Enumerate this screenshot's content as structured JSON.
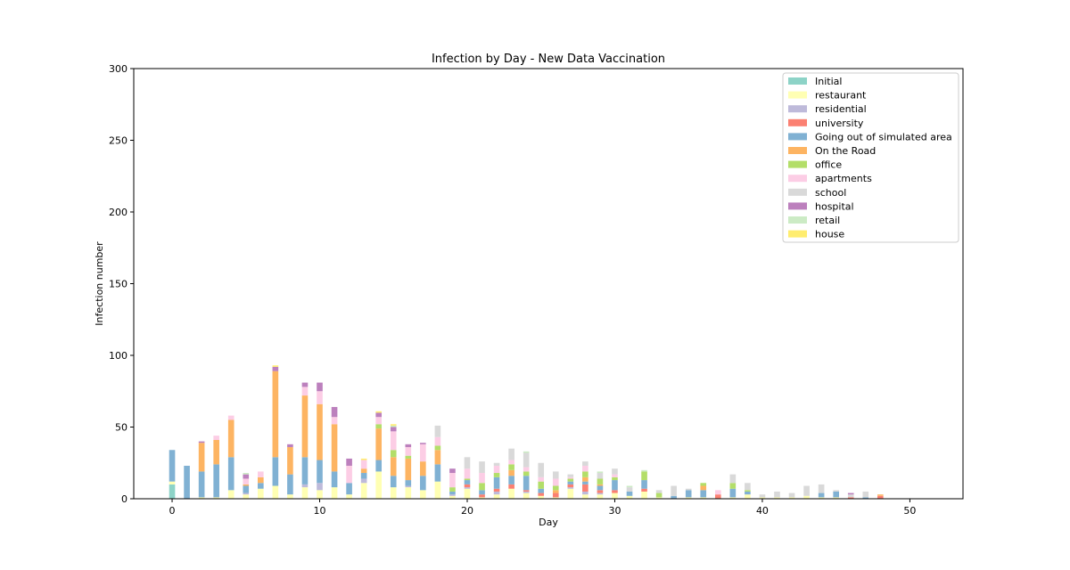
{
  "chart_data": {
    "type": "bar",
    "stacked": true,
    "title": "Infection by Day - New Data Vaccination",
    "xlabel": "Day",
    "ylabel": "Infection number",
    "xlim": [
      -2.6,
      53.6
    ],
    "ylim": [
      0,
      300
    ],
    "xticks": [
      0,
      10,
      20,
      30,
      40,
      50
    ],
    "yticks": [
      0,
      50,
      100,
      150,
      200,
      250,
      300
    ],
    "grid": false,
    "legend_position": "top-right",
    "x": [
      0,
      1,
      2,
      3,
      4,
      5,
      6,
      7,
      8,
      9,
      10,
      11,
      12,
      13,
      14,
      15,
      16,
      17,
      18,
      19,
      20,
      21,
      22,
      23,
      24,
      25,
      26,
      27,
      28,
      29,
      30,
      31,
      32,
      33,
      34,
      35,
      36,
      37,
      38,
      39,
      40,
      41,
      42,
      43,
      44,
      45,
      46,
      47,
      48,
      49,
      50,
      51,
      52
    ],
    "series": [
      {
        "name": "Initial",
        "color": "#8dd3c7",
        "values": [
          10,
          0,
          0,
          0,
          0,
          0,
          0,
          0,
          0,
          0,
          0,
          0,
          0,
          0,
          0,
          0,
          0,
          0,
          0,
          0,
          0,
          0,
          0,
          0,
          0,
          0,
          0,
          0,
          0,
          0,
          0,
          0,
          0,
          0,
          0,
          0,
          0,
          0,
          0,
          0,
          0,
          0,
          0,
          0,
          0,
          0,
          0,
          0,
          0,
          0,
          0,
          0,
          0
        ]
      },
      {
        "name": "restaurant",
        "color": "#ffffb3",
        "values": [
          2,
          0,
          1,
          1,
          6,
          3,
          7,
          9,
          3,
          8,
          6,
          8,
          3,
          11,
          19,
          8,
          8,
          6,
          12,
          2,
          7,
          1,
          3,
          7,
          4,
          2,
          1,
          7,
          3,
          3,
          4,
          2,
          5,
          1,
          0,
          1,
          1,
          0,
          1,
          3,
          1,
          1,
          1,
          2,
          1,
          1,
          0,
          0,
          0,
          0,
          0,
          0,
          0
        ]
      },
      {
        "name": "residential",
        "color": "#bebada",
        "values": [
          0,
          0,
          0,
          0,
          0,
          1,
          0,
          0,
          0,
          2,
          5,
          0,
          0,
          3,
          0,
          0,
          1,
          0,
          0,
          1,
          1,
          0,
          2,
          0,
          1,
          0,
          0,
          1,
          2,
          1,
          0,
          0,
          0,
          0,
          0,
          0,
          0,
          0,
          0,
          0,
          0,
          0,
          0,
          0,
          0,
          0,
          0,
          0,
          0,
          0,
          0,
          0,
          0
        ]
      },
      {
        "name": "university",
        "color": "#fb8072",
        "values": [
          0,
          0,
          0,
          0,
          0,
          0,
          0,
          0,
          0,
          0,
          0,
          0,
          0,
          0,
          0,
          0,
          0,
          0,
          0,
          0,
          2,
          2,
          2,
          3,
          1,
          2,
          3,
          2,
          5,
          2,
          2,
          0,
          2,
          0,
          0,
          0,
          0,
          3,
          0,
          0,
          0,
          0,
          0,
          0,
          0,
          0,
          1,
          0,
          2,
          0,
          0,
          0,
          0
        ]
      },
      {
        "name": "Going out of simulated area",
        "color": "#80b1d3",
        "values": [
          22,
          23,
          18,
          23,
          23,
          5,
          4,
          20,
          14,
          19,
          16,
          11,
          8,
          4,
          8,
          8,
          4,
          10,
          12,
          2,
          3,
          3,
          8,
          6,
          10,
          3,
          0,
          2,
          2,
          3,
          7,
          3,
          6,
          0,
          2,
          5,
          5,
          0,
          6,
          2,
          0,
          0,
          0,
          0,
          3,
          4,
          0,
          1,
          0,
          0,
          0,
          0,
          0
        ]
      },
      {
        "name": "On the Road",
        "color": "#fdb462",
        "values": [
          0,
          0,
          20,
          17,
          26,
          1,
          4,
          60,
          19,
          43,
          39,
          33,
          0,
          3,
          22,
          13,
          15,
          10,
          10,
          0,
          0,
          0,
          0,
          4,
          0,
          0,
          2,
          0,
          3,
          1,
          0,
          0,
          0,
          0,
          0,
          0,
          3,
          0,
          0,
          0,
          0,
          0,
          0,
          0,
          0,
          0,
          0,
          0,
          1,
          0,
          0,
          0,
          0
        ]
      },
      {
        "name": "office",
        "color": "#b3de69",
        "values": [
          0,
          0,
          0,
          0,
          0,
          0,
          0,
          0,
          0,
          0,
          0,
          0,
          0,
          0,
          3,
          5,
          2,
          0,
          3,
          3,
          1,
          5,
          3,
          4,
          3,
          5,
          3,
          2,
          4,
          4,
          2,
          0,
          6,
          3,
          0,
          0,
          2,
          0,
          4,
          1,
          0,
          0,
          0,
          0,
          0,
          0,
          0,
          0,
          0,
          0,
          0,
          0,
          0
        ]
      },
      {
        "name": "apartments",
        "color": "#fccde5",
        "values": [
          0,
          0,
          0,
          3,
          3,
          4,
          4,
          0,
          0,
          6,
          9,
          5,
          12,
          6,
          5,
          13,
          6,
          12,
          6,
          10,
          7,
          7,
          5,
          3,
          3,
          3,
          5,
          1,
          4,
          0,
          2,
          0,
          0,
          0,
          0,
          0,
          0,
          3,
          0,
          0,
          0,
          0,
          0,
          0,
          0,
          0,
          0,
          0,
          0,
          0,
          0,
          0,
          0
        ]
      },
      {
        "name": "school",
        "color": "#d9d9d9",
        "values": [
          0,
          0,
          0,
          0,
          0,
          0,
          0,
          0,
          0,
          0,
          0,
          0,
          0,
          0,
          0,
          0,
          0,
          0,
          8,
          0,
          8,
          8,
          2,
          8,
          10,
          10,
          5,
          2,
          3,
          4,
          4,
          3,
          0,
          2,
          7,
          1,
          0,
          0,
          6,
          5,
          2,
          4,
          3,
          7,
          6,
          1,
          2,
          4,
          0,
          0,
          0,
          0,
          0
        ]
      },
      {
        "name": "hospital",
        "color": "#bc80bd",
        "values": [
          0,
          0,
          1,
          0,
          0,
          3,
          0,
          3,
          2,
          3,
          6,
          7,
          5,
          0,
          3,
          3,
          2,
          1,
          0,
          3,
          0,
          0,
          0,
          0,
          0,
          0,
          0,
          0,
          0,
          0,
          0,
          0,
          0,
          0,
          0,
          0,
          0,
          0,
          0,
          0,
          0,
          0,
          0,
          0,
          0,
          0,
          1,
          0,
          0,
          0,
          0,
          0,
          0
        ]
      },
      {
        "name": "retail",
        "color": "#ccebc5",
        "values": [
          0,
          0,
          0,
          0,
          0,
          1,
          0,
          0,
          0,
          0,
          0,
          0,
          0,
          0,
          0,
          1,
          0,
          0,
          0,
          0,
          0,
          0,
          0,
          0,
          1,
          0,
          0,
          0,
          0,
          1,
          0,
          1,
          1,
          0,
          0,
          0,
          0,
          0,
          0,
          0,
          0,
          0,
          0,
          0,
          0,
          0,
          0,
          0,
          0,
          0,
          0,
          0,
          0
        ]
      },
      {
        "name": "house",
        "color": "#ffed6f",
        "values": [
          0,
          0,
          0,
          0,
          0,
          0,
          0,
          1,
          0,
          0,
          0,
          0,
          0,
          1,
          1,
          1,
          0,
          0,
          0,
          0,
          0,
          0,
          0,
          0,
          0,
          0,
          0,
          0,
          0,
          0,
          0,
          0,
          0,
          0,
          0,
          0,
          0,
          0,
          0,
          0,
          0,
          0,
          0,
          0,
          0,
          0,
          0,
          0,
          0,
          0,
          0,
          0,
          0
        ]
      }
    ]
  }
}
